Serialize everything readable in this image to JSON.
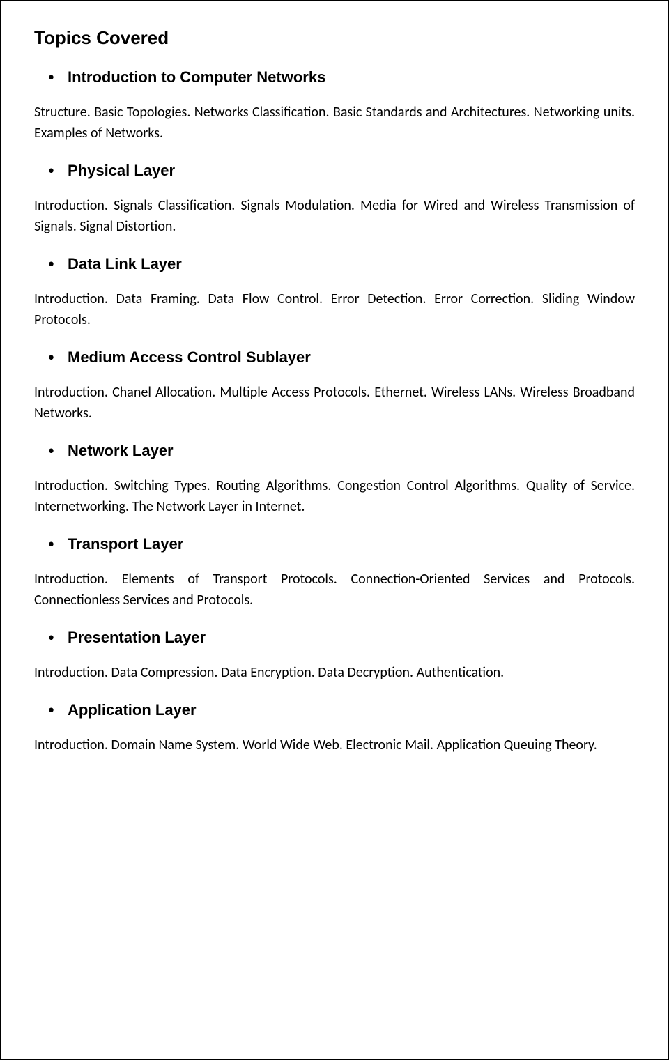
{
  "page_title": "Topics Covered",
  "sections": [
    {
      "title": "Introduction to Computer Networks",
      "body": "Structure. Basic Topologies. Networks Classification. Basic Standards and Architectures. Networking units. Examples of Networks."
    },
    {
      "title": "Physical Layer",
      "body": "Introduction. Signals Classification. Signals Modulation. Media for Wired and Wireless Transmission of Signals. Signal Distortion."
    },
    {
      "title": "Data Link Layer",
      "body": "Introduction. Data Framing. Data Flow Control. Error Detection. Error Correction. Sliding Window Protocols."
    },
    {
      "title": "Medium Access Control Sublayer",
      "body": "Introduction. Chanel Allocation. Multiple Access Protocols. Ethernet. Wireless LANs. Wireless Broadband Networks."
    },
    {
      "title": "Network Layer",
      "body": "Introduction. Switching Types. Routing Algorithms. Congestion Control Algorithms. Quality of Service. Internetworking. The Network Layer in Internet."
    },
    {
      "title": "Transport Layer",
      "body": "Introduction. Elements of Transport Protocols. Connection-Oriented Services and Protocols. Connectionless Services and Protocols."
    },
    {
      "title": "Presentation Layer",
      "body": "Introduction. Data Compression. Data Encryption. Data Decryption. Authentication."
    },
    {
      "title": "Application Layer",
      "body": "Introduction. Domain Name System. World Wide Web. Electronic Mail. Application Queuing Theory."
    }
  ]
}
